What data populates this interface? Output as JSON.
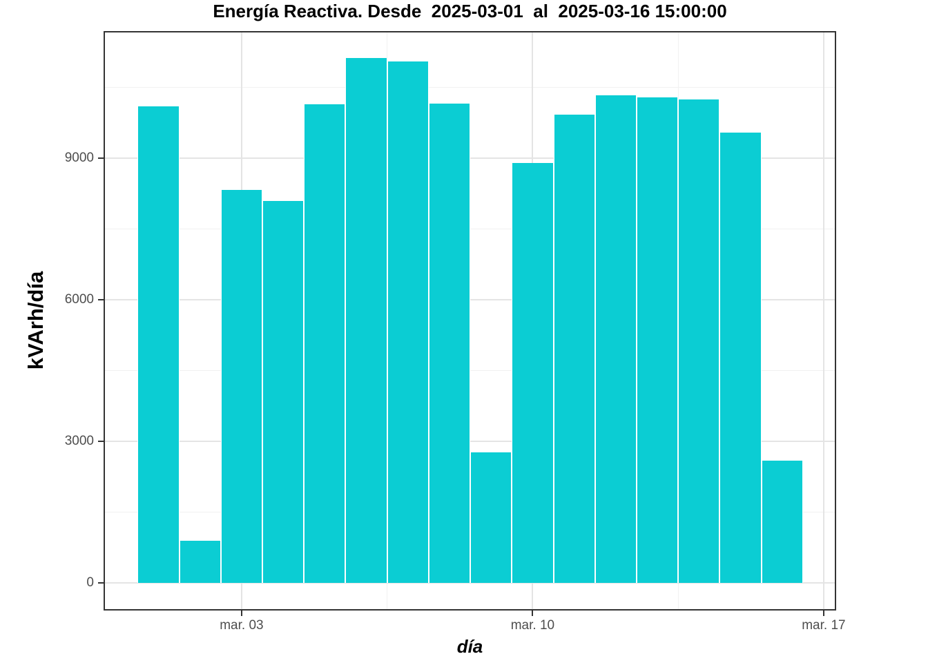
{
  "chart_data": {
    "type": "bar",
    "title": "Energía Reactiva. Desde  2025-03-01  al  2025-03-16 15:00:00",
    "xlabel": "día",
    "ylabel": "kVArh/día",
    "categories": [
      "2025-03-01",
      "2025-03-02",
      "2025-03-03",
      "2025-03-04",
      "2025-03-05",
      "2025-03-06",
      "2025-03-07",
      "2025-03-08",
      "2025-03-09",
      "2025-03-10",
      "2025-03-11",
      "2025-03-12",
      "2025-03-13",
      "2025-03-14",
      "2025-03-15",
      "2025-03-16"
    ],
    "values": [
      10100,
      900,
      8330,
      8100,
      10140,
      11120,
      11050,
      10160,
      2770,
      8900,
      9920,
      10330,
      10290,
      10240,
      9540,
      2600
    ],
    "bar_width_days": 1,
    "x_ticks": [
      {
        "day": 3,
        "label": "mar. 03"
      },
      {
        "day": 10,
        "label": "mar. 10"
      },
      {
        "day": 17,
        "label": "mar. 17"
      }
    ],
    "x_minor_days": [
      6.5,
      13.5
    ],
    "y_ticks": [
      {
        "value": 0,
        "label": "0"
      },
      {
        "value": 3000,
        "label": "3000"
      },
      {
        "value": 6000,
        "label": "6000"
      },
      {
        "value": 9000,
        "label": "9000"
      }
    ],
    "y_minor": [
      1500,
      4500,
      7500,
      10500
    ],
    "xlim_days": [
      -0.32,
      17.3
    ],
    "ylim": [
      -578,
      11690
    ],
    "grid": true,
    "legend": false,
    "colors": {
      "bar_fill": "#0bcdd3",
      "bar_stroke": "#ffffff",
      "grid_major": "#e4e4e4",
      "grid_minor": "#f1f1f1",
      "panel_border": "#333333",
      "tick_mark": "#333333",
      "tick_label": "#4d4d4d",
      "text": "#000000",
      "background": "#ffffff"
    }
  }
}
